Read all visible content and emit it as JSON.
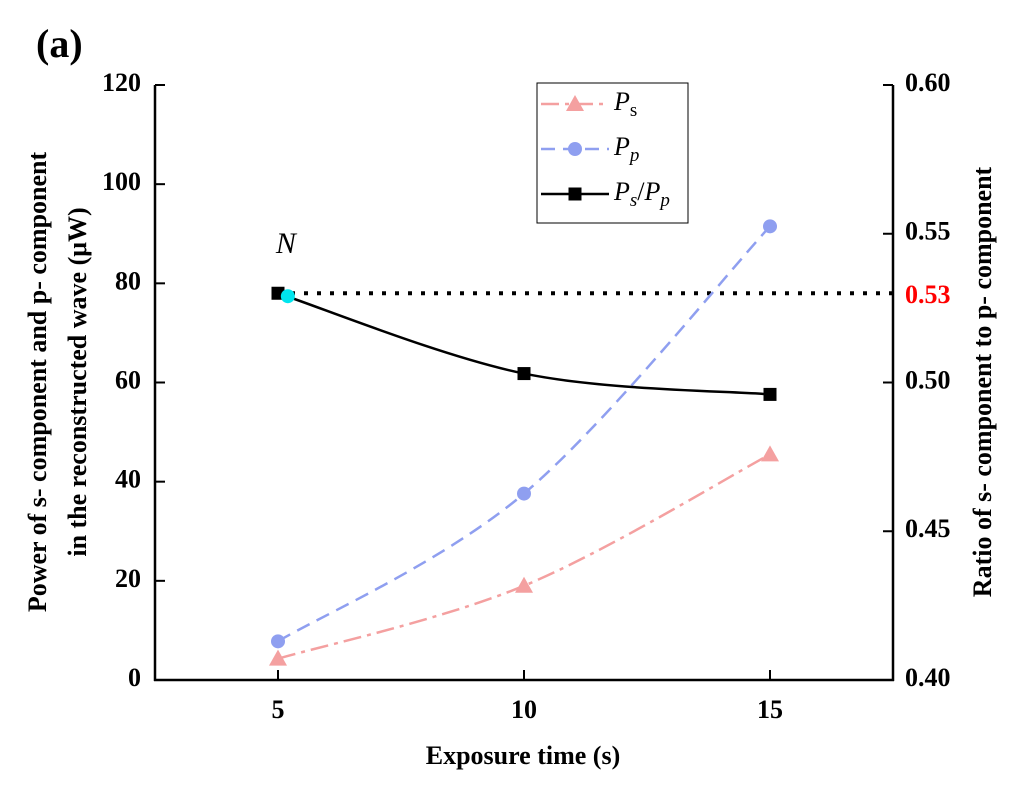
{
  "chart_data": {
    "type": "line",
    "title": "(a)",
    "xlabel": "Exposure time (s)",
    "ylabel": [
      "Power of s- component and p- component",
      "in the reconstructed wave (μW)"
    ],
    "y2label": "Ratio of s- component to p- component",
    "x": [
      5,
      10,
      15
    ],
    "xlim": [
      2.5,
      17.5
    ],
    "xticks": [
      5,
      10,
      15
    ],
    "ylim": [
      0,
      120
    ],
    "yticks": [
      0,
      20,
      40,
      60,
      80,
      100,
      120
    ],
    "y2lim": [
      0.4,
      0.6
    ],
    "y2ticks": [
      {
        "value": 0.4,
        "label": "0.40"
      },
      {
        "value": 0.45,
        "label": "0.45"
      },
      {
        "value": 0.5,
        "label": "0.50"
      },
      {
        "value": 0.55,
        "label": "0.55"
      },
      {
        "value": 0.6,
        "label": "0.60"
      }
    ],
    "series": [
      {
        "name": "Ps",
        "color": "#f4a0a0",
        "marker": "triangle",
        "dash": "18 6 4 6",
        "values": [
          4.3,
          19,
          45.5
        ]
      },
      {
        "name": "Pp",
        "color": "#8f9ff0",
        "marker": "circle",
        "dash": "14 8",
        "values": [
          7.8,
          37.6,
          91.5
        ]
      },
      {
        "name": "Ps/Pp",
        "color": "#000000",
        "marker": "square",
        "dash": "none",
        "axis": "y2",
        "values": [
          0.53,
          0.503,
          0.496
        ]
      }
    ],
    "reference_line": {
      "value": 0.53,
      "label": "0.53",
      "color": "#ff0000"
    },
    "annotation": {
      "text": "N",
      "x": 5.2,
      "y": 0.529,
      "color": "#00e5ee"
    },
    "legend": "top-center"
  }
}
